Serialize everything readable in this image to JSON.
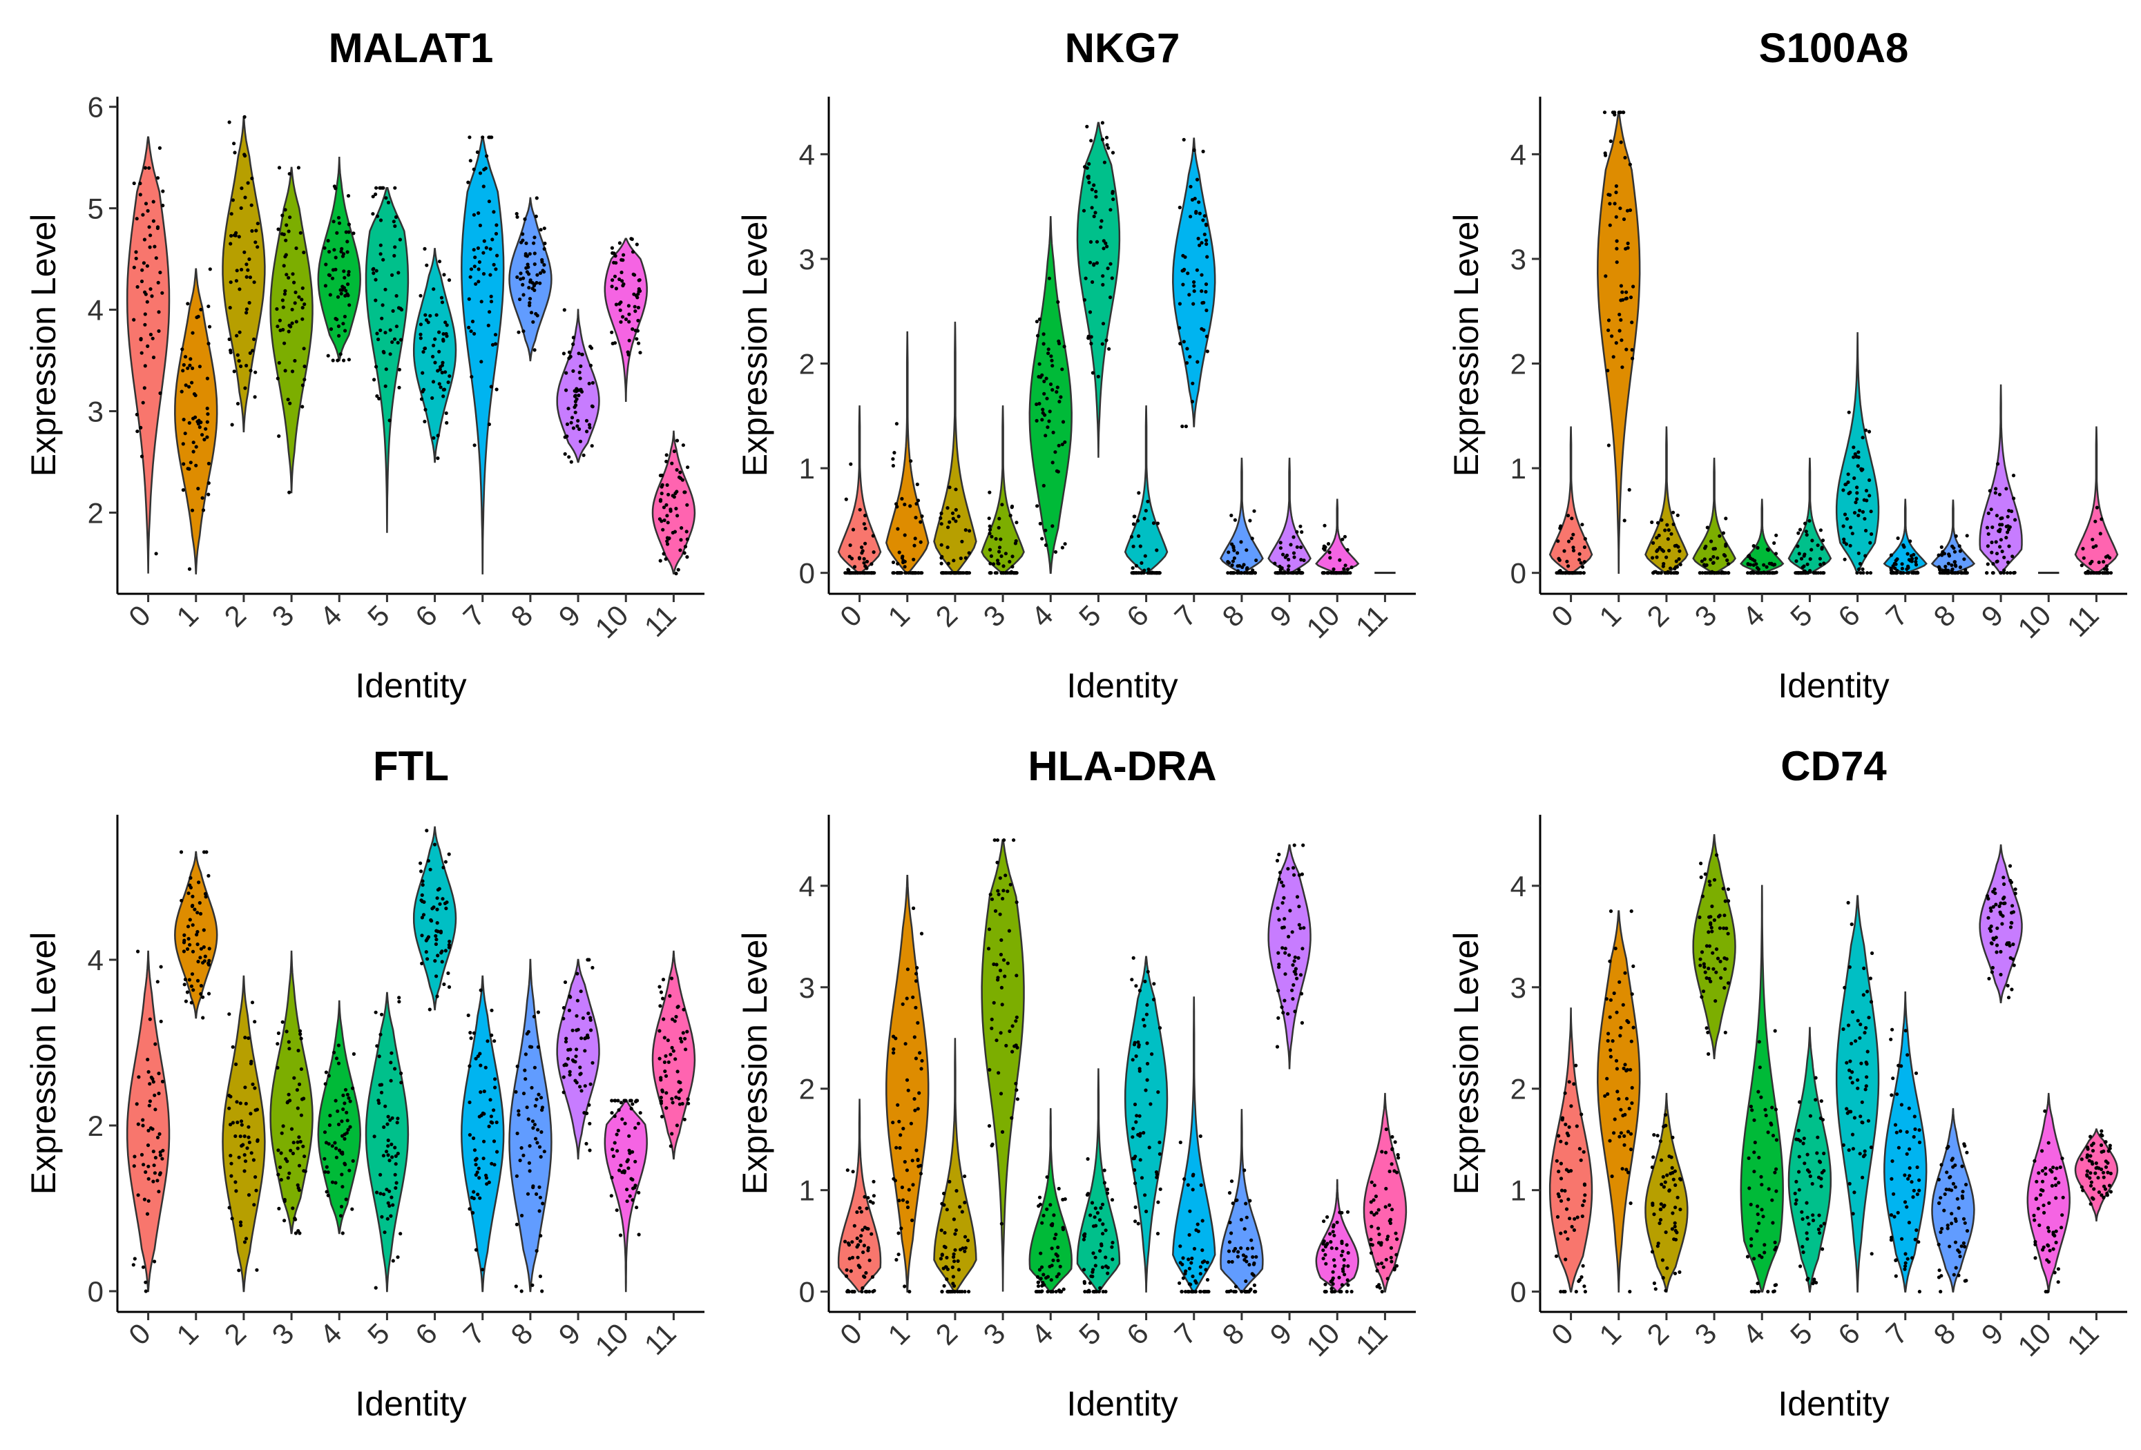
{
  "figure": {
    "xlabel": "Identity",
    "ylabel": "Expression Level"
  },
  "chart_data": [
    {
      "type": "violin",
      "title": "MALAT1",
      "xlabel": "Identity",
      "ylabel": "Expression Level",
      "ylim": [
        1.2,
        6.1
      ],
      "yticks": [
        2,
        3,
        4,
        5,
        6
      ],
      "categories": [
        "0",
        "1",
        "2",
        "3",
        "4",
        "5",
        "6",
        "7",
        "8",
        "9",
        "10",
        "11"
      ],
      "colors": [
        "#F8766D",
        "#DE8C00",
        "#B79F00",
        "#7CAE00",
        "#00BA38",
        "#00C08B",
        "#00BFC4",
        "#00B4F0",
        "#619CFF",
        "#C77CFF",
        "#F564E3",
        "#FF64B0"
      ],
      "stats": [
        {
          "min": 1.4,
          "max": 5.7,
          "median": 4.1
        },
        {
          "min": 1.4,
          "max": 4.4,
          "median": 3.0
        },
        {
          "min": 2.8,
          "max": 5.9,
          "median": 4.4
        },
        {
          "min": 2.2,
          "max": 5.4,
          "median": 4.0
        },
        {
          "min": 3.5,
          "max": 5.5,
          "median": 4.3
        },
        {
          "min": 1.8,
          "max": 5.2,
          "median": 4.3
        },
        {
          "min": 2.5,
          "max": 4.6,
          "median": 3.6
        },
        {
          "min": 1.4,
          "max": 5.7,
          "median": 4.4
        },
        {
          "min": 3.5,
          "max": 5.1,
          "median": 4.3
        },
        {
          "min": 2.5,
          "max": 4.0,
          "median": 3.1
        },
        {
          "min": 3.1,
          "max": 4.7,
          "median": 4.2
        },
        {
          "min": 1.4,
          "max": 2.8,
          "median": 2.0
        }
      ]
    },
    {
      "type": "violin",
      "title": "NKG7",
      "xlabel": "Identity",
      "ylabel": "Expression Level",
      "ylim": [
        -0.2,
        4.55
      ],
      "yticks": [
        0,
        1,
        2,
        3,
        4
      ],
      "categories": [
        "0",
        "1",
        "2",
        "3",
        "4",
        "5",
        "6",
        "7",
        "8",
        "9",
        "10",
        "11"
      ],
      "colors": [
        "#F8766D",
        "#DE8C00",
        "#B79F00",
        "#7CAE00",
        "#00BA38",
        "#00C08B",
        "#00BFC4",
        "#00B4F0",
        "#619CFF",
        "#C77CFF",
        "#F564E3",
        "#FF64B0"
      ],
      "stats": [
        {
          "min": 0,
          "max": 1.6,
          "median": 0
        },
        {
          "min": 0,
          "max": 2.3,
          "median": 0
        },
        {
          "min": 0,
          "max": 2.4,
          "median": 0
        },
        {
          "min": 0,
          "max": 1.6,
          "median": 0
        },
        {
          "min": 0,
          "max": 3.4,
          "median": 1.5
        },
        {
          "min": 1.1,
          "max": 4.3,
          "median": 3.2
        },
        {
          "min": 0,
          "max": 1.6,
          "median": 0
        },
        {
          "min": 1.4,
          "max": 4.15,
          "median": 2.8
        },
        {
          "min": 0,
          "max": 1.1,
          "median": 0
        },
        {
          "min": 0,
          "max": 1.1,
          "median": 0
        },
        {
          "min": 0,
          "max": 0.7,
          "median": 0
        },
        {
          "min": 0,
          "max": 0,
          "median": 0
        }
      ]
    },
    {
      "type": "violin",
      "title": "S100A8",
      "xlabel": "Identity",
      "ylabel": "Expression Level",
      "ylim": [
        -0.2,
        4.55
      ],
      "yticks": [
        0,
        1,
        2,
        3,
        4
      ],
      "categories": [
        "0",
        "1",
        "2",
        "3",
        "4",
        "5",
        "6",
        "7",
        "8",
        "9",
        "10",
        "11"
      ],
      "colors": [
        "#F8766D",
        "#DE8C00",
        "#B79F00",
        "#7CAE00",
        "#00BA38",
        "#00C08B",
        "#00BFC4",
        "#00B4F0",
        "#619CFF",
        "#C77CFF",
        "#F564E3",
        "#FF64B0"
      ],
      "stats": [
        {
          "min": 0,
          "max": 1.4,
          "median": 0
        },
        {
          "min": 0,
          "max": 4.4,
          "median": 2.9
        },
        {
          "min": 0,
          "max": 1.4,
          "median": 0
        },
        {
          "min": 0,
          "max": 1.1,
          "median": 0
        },
        {
          "min": 0,
          "max": 0.7,
          "median": 0
        },
        {
          "min": 0,
          "max": 1.1,
          "median": 0
        },
        {
          "min": 0,
          "max": 2.3,
          "median": 0.6
        },
        {
          "min": 0,
          "max": 0.7,
          "median": 0
        },
        {
          "min": 0,
          "max": 0.7,
          "median": 0
        },
        {
          "min": 0,
          "max": 1.8,
          "median": 0.3
        },
        {
          "min": 0,
          "max": 0,
          "median": 0
        },
        {
          "min": 0,
          "max": 1.4,
          "median": 0
        }
      ]
    },
    {
      "type": "violin",
      "title": "FTL",
      "xlabel": "Identity",
      "ylabel": "Expression Level",
      "ylim": [
        -0.25,
        5.75
      ],
      "yticks": [
        0,
        2,
        4
      ],
      "categories": [
        "0",
        "1",
        "2",
        "3",
        "4",
        "5",
        "6",
        "7",
        "8",
        "9",
        "10",
        "11"
      ],
      "colors": [
        "#F8766D",
        "#DE8C00",
        "#B79F00",
        "#7CAE00",
        "#00BA38",
        "#00C08B",
        "#00BFC4",
        "#00B4F0",
        "#619CFF",
        "#C77CFF",
        "#F564E3",
        "#FF64B0"
      ],
      "stats": [
        {
          "min": 0,
          "max": 4.1,
          "median": 1.9
        },
        {
          "min": 3.3,
          "max": 5.3,
          "median": 4.3
        },
        {
          "min": 0,
          "max": 3.8,
          "median": 1.8
        },
        {
          "min": 0.7,
          "max": 4.1,
          "median": 2.1
        },
        {
          "min": 0.7,
          "max": 3.5,
          "median": 1.9
        },
        {
          "min": 0,
          "max": 3.6,
          "median": 1.9
        },
        {
          "min": 3.4,
          "max": 5.6,
          "median": 4.5
        },
        {
          "min": 0,
          "max": 3.8,
          "median": 1.9
        },
        {
          "min": 0,
          "max": 4.0,
          "median": 1.8
        },
        {
          "min": 1.6,
          "max": 4.0,
          "median": 2.9
        },
        {
          "min": 0,
          "max": 2.3,
          "median": 1.8
        },
        {
          "min": 1.6,
          "max": 4.1,
          "median": 2.8
        }
      ]
    },
    {
      "type": "violin",
      "title": "HLA-DRA",
      "xlabel": "Identity",
      "ylabel": "Expression Level",
      "ylim": [
        -0.2,
        4.7
      ],
      "yticks": [
        0,
        1,
        2,
        3,
        4
      ],
      "categories": [
        "0",
        "1",
        "2",
        "3",
        "4",
        "5",
        "6",
        "7",
        "8",
        "9",
        "10",
        "11"
      ],
      "colors": [
        "#F8766D",
        "#DE8C00",
        "#B79F00",
        "#7CAE00",
        "#00BA38",
        "#00C08B",
        "#00BFC4",
        "#00B4F0",
        "#619CFF",
        "#C77CFF",
        "#F564E3",
        "#FF64B0"
      ],
      "stats": [
        {
          "min": 0,
          "max": 1.9,
          "median": 0.3
        },
        {
          "min": 0,
          "max": 4.1,
          "median": 2.0
        },
        {
          "min": 0,
          "max": 2.5,
          "median": 0.3
        },
        {
          "min": 0,
          "max": 4.45,
          "median": 2.95
        },
        {
          "min": 0,
          "max": 1.8,
          "median": 0.3
        },
        {
          "min": 0,
          "max": 2.2,
          "median": 0.3
        },
        {
          "min": 0,
          "max": 3.3,
          "median": 1.9
        },
        {
          "min": 0,
          "max": 2.9,
          "median": 0.3
        },
        {
          "min": 0,
          "max": 1.8,
          "median": 0.3
        },
        {
          "min": 2.2,
          "max": 4.4,
          "median": 3.5
        },
        {
          "min": 0,
          "max": 1.1,
          "median": 0.3
        },
        {
          "min": 0,
          "max": 1.95,
          "median": 0.8
        }
      ]
    },
    {
      "type": "violin",
      "title": "CD74",
      "xlabel": "Identity",
      "ylabel": "Expression Level",
      "ylim": [
        -0.2,
        4.7
      ],
      "yticks": [
        0,
        1,
        2,
        3,
        4
      ],
      "categories": [
        "0",
        "1",
        "2",
        "3",
        "4",
        "5",
        "6",
        "7",
        "8",
        "9",
        "10",
        "11"
      ],
      "colors": [
        "#F8766D",
        "#DE8C00",
        "#B79F00",
        "#7CAE00",
        "#00BA38",
        "#00C08B",
        "#00BFC4",
        "#00B4F0",
        "#619CFF",
        "#C77CFF",
        "#F564E3",
        "#FF64B0"
      ],
      "stats": [
        {
          "min": 0,
          "max": 2.8,
          "median": 1.0
        },
        {
          "min": 0,
          "max": 3.75,
          "median": 2.1
        },
        {
          "min": 0,
          "max": 1.95,
          "median": 0.8
        },
        {
          "min": 2.3,
          "max": 4.5,
          "median": 3.4
        },
        {
          "min": 0,
          "max": 4.0,
          "median": 1.0
        },
        {
          "min": 0,
          "max": 2.6,
          "median": 1.1
        },
        {
          "min": 0,
          "max": 3.9,
          "median": 2.1
        },
        {
          "min": 0,
          "max": 2.95,
          "median": 1.2
        },
        {
          "min": 0,
          "max": 1.8,
          "median": 0.8
        },
        {
          "min": 2.85,
          "max": 4.4,
          "median": 3.6
        },
        {
          "min": 0,
          "max": 1.95,
          "median": 0.9
        },
        {
          "min": 0.7,
          "max": 1.6,
          "median": 1.2
        }
      ]
    }
  ]
}
